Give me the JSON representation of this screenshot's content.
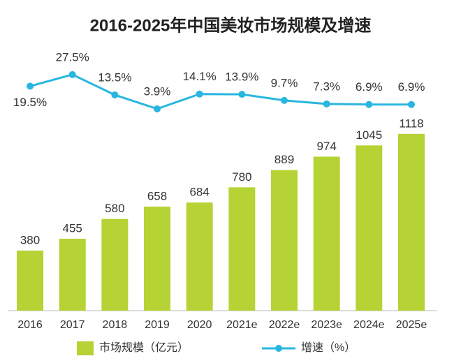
{
  "chart_data": {
    "type": "bar_line",
    "title": "2016-2025年中国美妆市场规模及增速",
    "categories": [
      "2016",
      "2017",
      "2018",
      "2019",
      "2020",
      "2021e",
      "2022e",
      "2023e",
      "2024e",
      "2025e"
    ],
    "series": [
      {
        "name": "市场规模（亿元）",
        "color": "#b5d334",
        "values": [
          380,
          455,
          580,
          658,
          684,
          780,
          889,
          974,
          1045,
          1118
        ]
      },
      {
        "name": "增速（%）",
        "color": "#29b6e0",
        "axis": "y2",
        "values": [
          19.5,
          27.5,
          13.5,
          3.9,
          14.1,
          13.9,
          9.7,
          7.3,
          6.9,
          6.9
        ],
        "value_labels": [
          "19.5%",
          "27.5%",
          "13.5%",
          "3.9%",
          "14.1%",
          "13.9%",
          "9.7%",
          "7.3%",
          "6.9%",
          "6.9%"
        ]
      }
    ],
    "ylim": [
      0,
      1700
    ],
    "y2lim": [
      -135,
      50
    ]
  }
}
